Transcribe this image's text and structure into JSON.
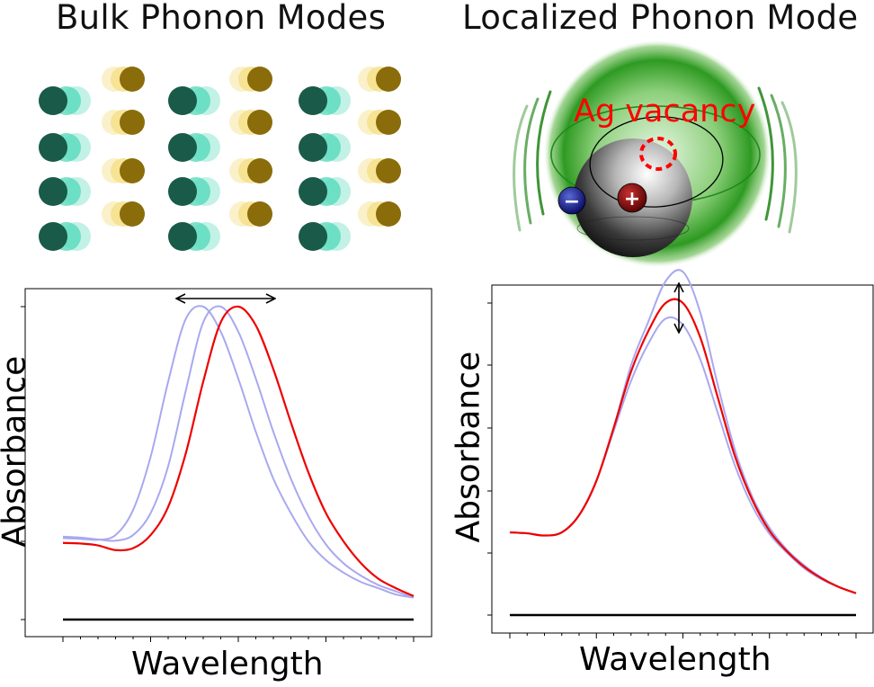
{
  "titles": {
    "left": "Bulk Phonon Modes",
    "right": "Localized Phonon Mode"
  },
  "annotation": {
    "vacancy_label": "Ag vacancy",
    "negative_sign": "−",
    "positive_sign": "+"
  },
  "colors": {
    "dark_atom": "#1a5a48",
    "dark_atom_ghost": "#4fd8b8",
    "gold_atom": "#8a6c0a",
    "gold_atom_ghost": "#f5e08a",
    "main_curve": "#ee0000",
    "shifted_curve": "#a8a8f0",
    "baseline": "#000000",
    "glow": "#2a9a20",
    "vacancy": "#ff0000",
    "electron": "#1a1a8a",
    "hole": "#7a0a0a"
  },
  "chart_data": [
    {
      "type": "line",
      "title": "Bulk Phonon Modes",
      "xlabel": "Wavelength",
      "ylabel": "Absorbance",
      "x": [
        0,
        0.5,
        1,
        1.5,
        2,
        2.5,
        3,
        3.5,
        4,
        4.5,
        5,
        5.5,
        6,
        6.5,
        7,
        7.5,
        8,
        8.5,
        9,
        9.5,
        10
      ],
      "xlim": [
        0,
        10
      ],
      "ylim": [
        0,
        1
      ],
      "grid": false,
      "legend": "none",
      "series": [
        {
          "values": [
            0.265,
            0.262,
            0.256,
            0.252,
            0.27,
            0.34,
            0.49,
            0.73,
            0.95,
            1.0,
            0.92,
            0.77,
            0.6,
            0.45,
            0.33,
            0.24,
            0.18,
            0.14,
            0.11,
            0.09,
            0.07
          ]
        },
        {
          "values": [
            0.26,
            0.258,
            0.255,
            0.27,
            0.35,
            0.52,
            0.76,
            0.96,
            1.0,
            0.92,
            0.77,
            0.6,
            0.45,
            0.34,
            0.25,
            0.19,
            0.15,
            0.12,
            0.1,
            0.08,
            0.07
          ]
        },
        {
          "values": [
            0.245,
            0.243,
            0.237,
            0.222,
            0.228,
            0.27,
            0.36,
            0.53,
            0.76,
            0.95,
            1.0,
            0.94,
            0.8,
            0.63,
            0.47,
            0.34,
            0.25,
            0.18,
            0.13,
            0.1,
            0.075
          ]
        },
        {
          "values": [
            0,
            0,
            0,
            0,
            0,
            0,
            0,
            0,
            0,
            0,
            0,
            0,
            0,
            0,
            0,
            0,
            0,
            0,
            0,
            0,
            0
          ]
        }
      ]
    },
    {
      "type": "line",
      "title": "Localized Phonon Mode",
      "xlabel": "Wavelength",
      "ylabel": "Absorbance",
      "x": [
        0,
        0.5,
        1,
        1.5,
        2,
        2.5,
        3,
        3.5,
        4,
        4.5,
        5,
        5.5,
        6,
        6.5,
        7,
        7.5,
        8,
        8.5,
        9,
        9.5,
        10
      ],
      "xlim": [
        0,
        10
      ],
      "ylim": [
        0,
        1
      ],
      "grid": false,
      "legend": "none",
      "series": [
        {
          "values": [
            0.265,
            0.262,
            0.255,
            0.265,
            0.32,
            0.43,
            0.6,
            0.8,
            0.94,
            1.07,
            1.1,
            0.97,
            0.74,
            0.53,
            0.38,
            0.28,
            0.21,
            0.16,
            0.12,
            0.09,
            0.07
          ]
        },
        {
          "values": [
            0.265,
            0.262,
            0.255,
            0.265,
            0.32,
            0.43,
            0.59,
            0.75,
            0.87,
            0.95,
            0.93,
            0.82,
            0.65,
            0.48,
            0.35,
            0.26,
            0.2,
            0.15,
            0.115,
            0.09,
            0.07
          ]
        },
        {
          "values": [
            0.265,
            0.262,
            0.255,
            0.265,
            0.32,
            0.43,
            0.6,
            0.78,
            0.91,
            1.0,
            1.0,
            0.89,
            0.7,
            0.51,
            0.37,
            0.27,
            0.205,
            0.155,
            0.118,
            0.09,
            0.07
          ]
        },
        {
          "values": [
            0,
            0,
            0,
            0,
            0,
            0,
            0,
            0,
            0,
            0,
            0,
            0,
            0,
            0,
            0,
            0,
            0,
            0,
            0,
            0,
            0
          ]
        }
      ]
    }
  ]
}
